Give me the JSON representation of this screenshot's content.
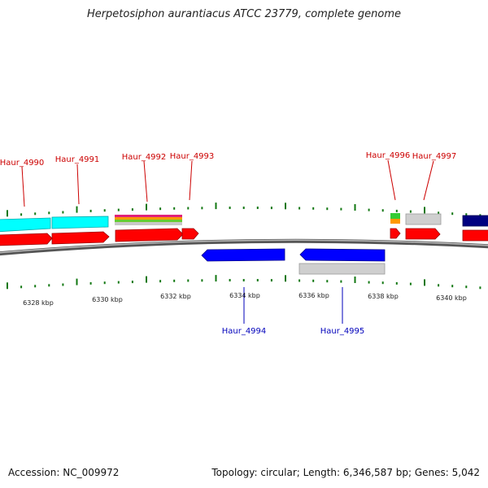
{
  "title": "Herpetosiphon aurantiacus ATCC 23779, complete genome",
  "footer": {
    "accession": "Accession: NC_009972",
    "summary": "Topology: circular; Length: 6,346,587 bp; Genes: 5,042"
  },
  "colors": {
    "forward_label": "#cc0000",
    "reverse_label": "#0000bb",
    "tick": "#117711",
    "backbone": "#888888"
  },
  "scale_labels": [
    "6328 kbp",
    "6330 kbp",
    "6332 kbp",
    "6334 kbp",
    "6336 kbp",
    "6338 kbp",
    "6340 kbp"
  ],
  "forward_genes": [
    {
      "label": "Haur_4990"
    },
    {
      "label": "Haur_4991"
    },
    {
      "label": "Haur_4992"
    },
    {
      "label": "Haur_4993"
    },
    {
      "label": "Haur_4996"
    },
    {
      "label": "Haur_4997"
    }
  ],
  "reverse_genes": [
    {
      "label": "Haur_4994"
    },
    {
      "label": "Haur_4995"
    }
  ]
}
